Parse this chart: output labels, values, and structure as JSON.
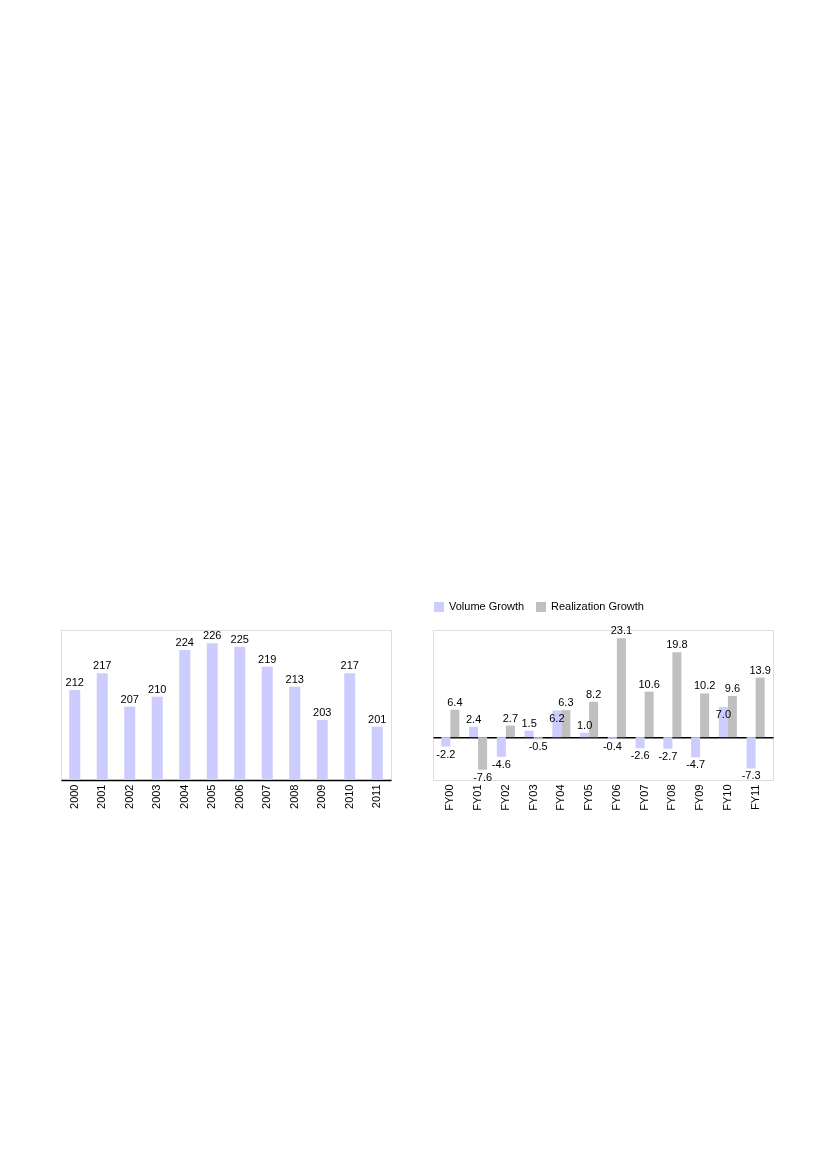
{
  "chart_data": [
    {
      "type": "bar",
      "categories": [
        "2000",
        "2001",
        "2002",
        "2003",
        "2004",
        "2005",
        "2006",
        "2007",
        "2008",
        "2009",
        "2010",
        "2011"
      ],
      "values": [
        212,
        217,
        207,
        210,
        224,
        226,
        225,
        219,
        213,
        203,
        217,
        201
      ],
      "color": "#ccccff",
      "ylim": [
        185,
        230
      ],
      "data_labels": true,
      "tick_labels": "x"
    },
    {
      "type": "bar",
      "categories": [
        "FY00",
        "FY01",
        "FY02",
        "FY03",
        "FY04",
        "FY05",
        "FY06",
        "FY07",
        "FY08",
        "FY09",
        "FY10",
        "FY11"
      ],
      "series": [
        {
          "name": "Volume Growth",
          "color": "#ccccff",
          "values": [
            -2.2,
            2.4,
            -4.6,
            1.5,
            6.2,
            1.0,
            -0.4,
            -2.6,
            -2.7,
            -4.7,
            7.0,
            -7.3
          ],
          "value_labels": [
            "-2.2",
            "2.4",
            "-4.6",
            "1.5",
            "6.2",
            "1.0",
            "-0.4",
            "-2.6",
            "-2.7",
            "-4.7",
            "7.0",
            "-7.3"
          ]
        },
        {
          "name": "Realization Growth",
          "color": "#c0c0c0",
          "values": [
            6.4,
            -7.6,
            2.7,
            -0.5,
            6.3,
            8.2,
            23.1,
            10.6,
            19.8,
            10.2,
            9.6,
            13.9
          ],
          "value_labels": [
            "6.4",
            "-7.6",
            "2.7",
            "-0.5",
            "6.3",
            "8.2",
            "23.1",
            "10.6",
            "19.8",
            "10.2",
            "9.6",
            "13.9"
          ]
        }
      ],
      "ylim": [
        -10,
        25
      ],
      "tick_labels": "x",
      "legend": "top"
    }
  ]
}
